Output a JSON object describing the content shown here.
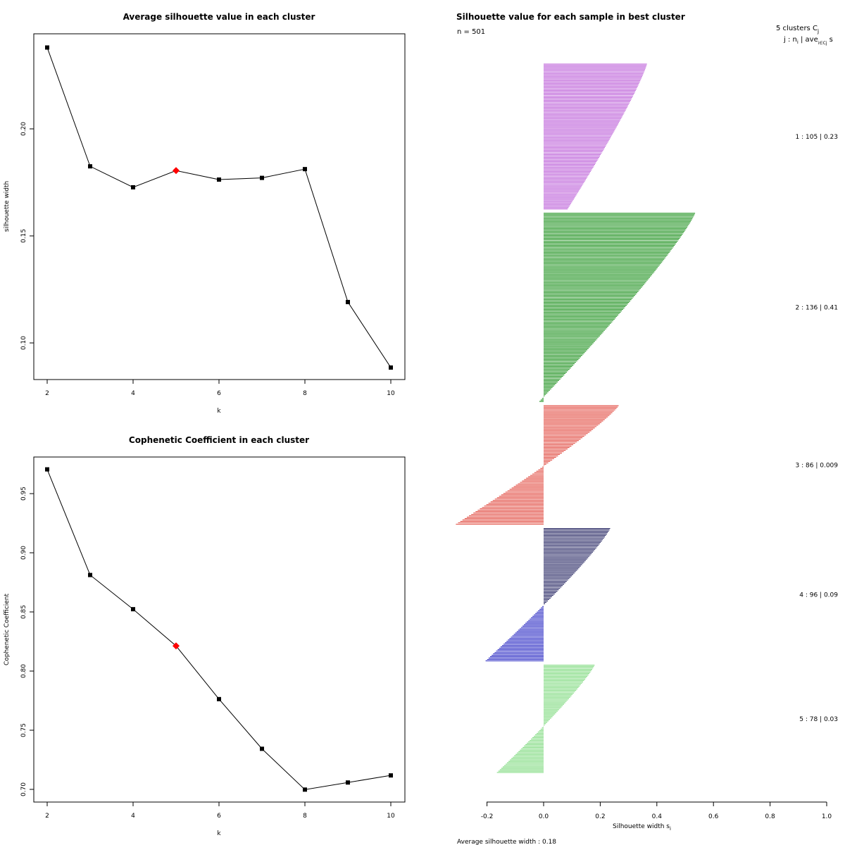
{
  "chart_data": [
    {
      "type": "line",
      "title": "Average silhouette value in each cluster",
      "xlabel": "k",
      "ylabel": "silhouette width",
      "x": [
        2,
        3,
        4,
        5,
        6,
        7,
        8,
        9,
        10
      ],
      "values": [
        0.238,
        0.1825,
        0.1727,
        0.1805,
        0.1763,
        0.1771,
        0.1812,
        0.1191,
        0.0885
      ],
      "highlight_k": 5,
      "highlight_color": "#ff0000",
      "xticks": [
        2,
        4,
        6,
        8,
        10
      ],
      "yticks": [
        "0.10",
        "0.15",
        "0.20"
      ],
      "yticks_values": [
        0.1,
        0.15,
        0.2
      ]
    },
    {
      "type": "line",
      "title": "Cophenetic Coefficient in each cluster",
      "xlabel": "k",
      "ylabel": "Cophenetic Coefficient",
      "x": [
        2,
        3,
        4,
        5,
        6,
        7,
        8,
        9,
        10
      ],
      "values": [
        0.9705,
        0.8812,
        0.8523,
        0.8213,
        0.7763,
        0.7343,
        0.6998,
        0.7058,
        0.7118
      ],
      "highlight_k": 5,
      "highlight_color": "#ff0000",
      "xticks": [
        2,
        4,
        6,
        8,
        10
      ],
      "yticks": [
        "0.70",
        "0.75",
        "0.80",
        "0.85",
        "0.90",
        "0.95"
      ],
      "yticks_values": [
        0.7,
        0.75,
        0.8,
        0.85,
        0.9,
        0.95
      ]
    },
    {
      "type": "bar",
      "title": "Silhouette value for each sample in best cluster",
      "n_label": "n = 501",
      "header_label": "5  clusters  C",
      "header_sub": "j",
      "subheader_label": "j :  n",
      "subheader_label2": " | ave",
      "subheader_label3": "i∈Cj",
      "subheader_label4": "  s",
      "subheader_label5": "i",
      "xlabel": "Silhouette width s",
      "xlabel_sub": "i",
      "xlim": [
        -0.2,
        1.0
      ],
      "xticks": [
        "-0.2",
        "0.0",
        "0.2",
        "0.4",
        "0.6",
        "0.8",
        "1.0"
      ],
      "xticks_values": [
        -0.2,
        0.0,
        0.2,
        0.4,
        0.6,
        0.8,
        1.0
      ],
      "footer": "Average silhouette width :  0.18",
      "clusters": [
        {
          "label": "1 :   105  |  0.23",
          "n": 105,
          "max": 0.365,
          "min": 0.085,
          "color": "#b856d6",
          "neg_color": "#b05fc0"
        },
        {
          "label": "2 :   136  |  0.41",
          "n": 136,
          "max": 0.535,
          "min": -0.015,
          "color": "#138c13",
          "neg_color": "#138c13"
        },
        {
          "label": "3 :   86  |  0.009",
          "n": 86,
          "max": 0.265,
          "min": -0.31,
          "color": "#e0443a",
          "neg_color": "#e0443a"
        },
        {
          "label": "4 :   96  |  0.09",
          "n": 96,
          "max": 0.235,
          "min": -0.205,
          "color": "#1a1a5a",
          "neg_color": "#1f1fc0"
        },
        {
          "label": "5 :   78  |  0.03",
          "n": 78,
          "max": 0.18,
          "min": -0.165,
          "color": "#78d878",
          "neg_color": "#78d878"
        }
      ]
    }
  ]
}
